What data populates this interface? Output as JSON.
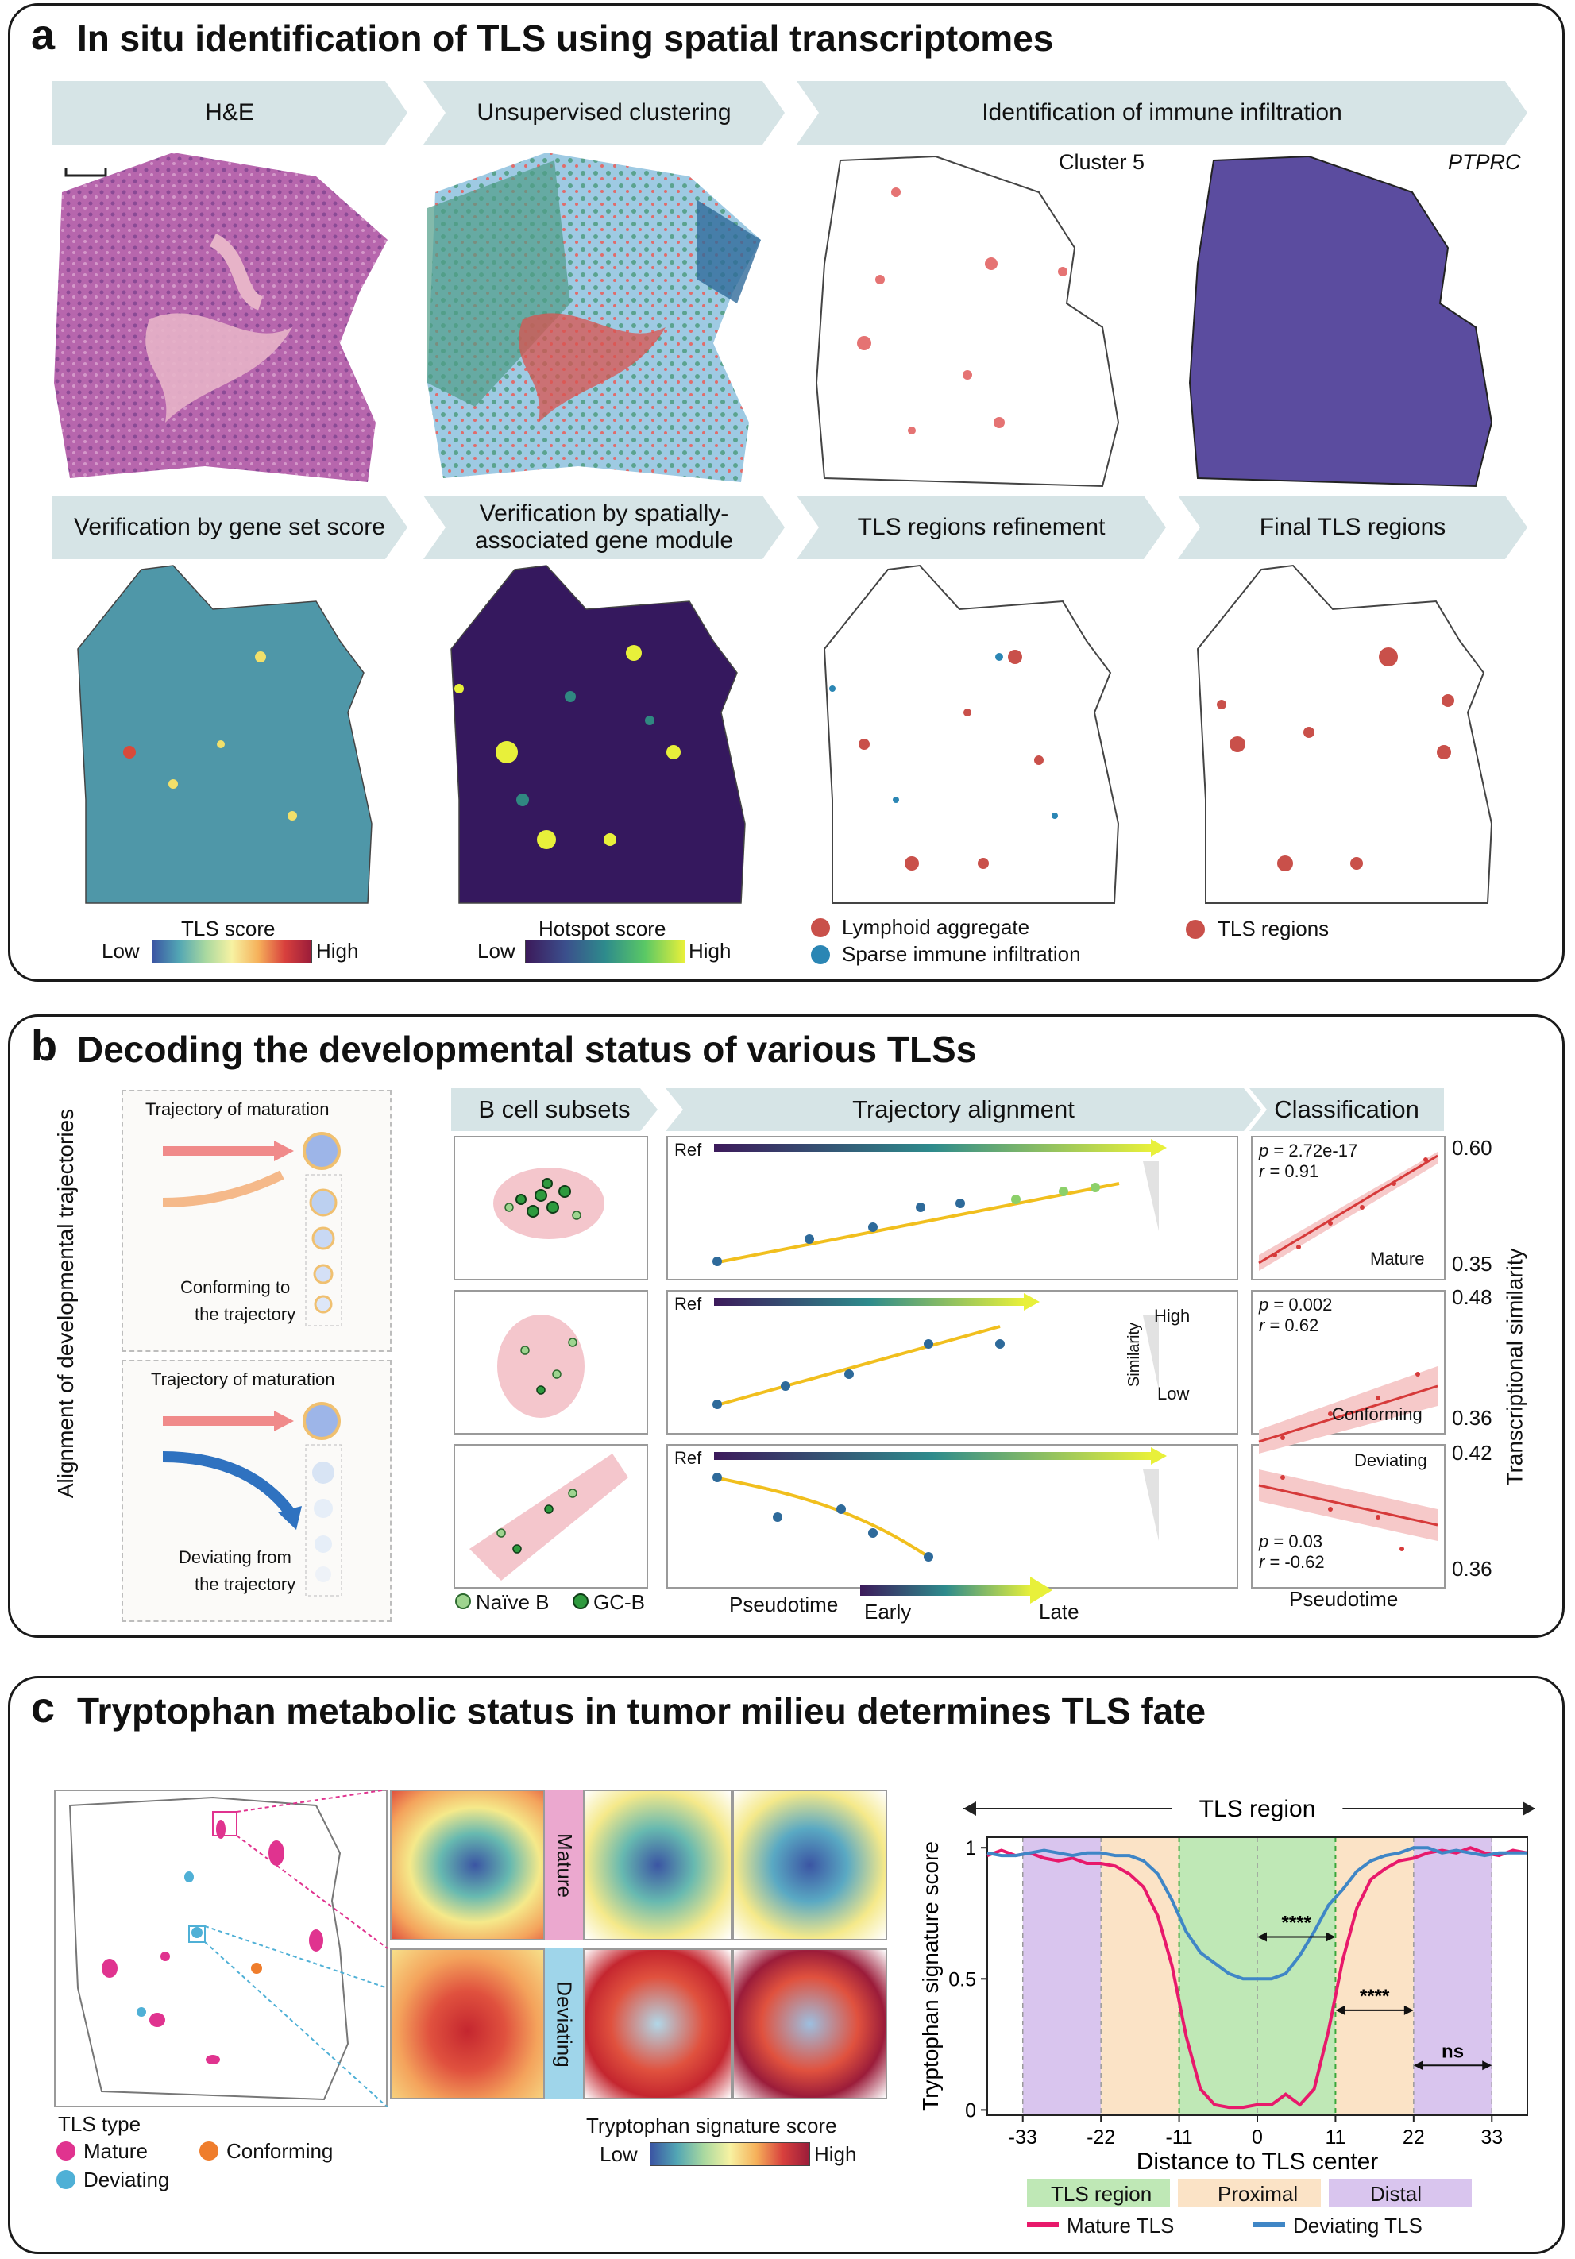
{
  "panel_a": {
    "label": "a",
    "title": "In situ identification of TLS using spatial transcriptomes",
    "headers": [
      "H&E",
      "Unsupervised clustering",
      "Identification of immune infiltration",
      "Verification by gene set score",
      "Verification by spatially-associated gene module",
      "TLS regions refinement",
      "Final TLS regions"
    ],
    "map_labels": {
      "cluster": "Cluster 5",
      "gene": "PTPRC"
    },
    "tls_score": {
      "title": "TLS score",
      "low": "Low",
      "high": "High"
    },
    "hotspot": {
      "title": "Hotspot score",
      "low": "Low",
      "high": "High"
    },
    "legend_refine": [
      "Lymphoid aggregate",
      "Sparse immune infiltration"
    ],
    "legend_final": "TLS regions",
    "colors": {
      "tls": "#c9504a",
      "sparse": "#2b86b4",
      "he": "#b25ea8",
      "ptprc": "#5b4c9f"
    }
  },
  "panel_b": {
    "label": "b",
    "title": "Decoding the developmental status of various TLSs",
    "side_label": "Alignment of developmental trajectories",
    "schematic": {
      "top_title": "Trajectory of maturation",
      "top_caption": [
        "Conforming to",
        "the trajectory"
      ],
      "bottom_title": "Trajectory of maturation",
      "bottom_caption": [
        "Deviating from",
        "the trajectory"
      ]
    },
    "headers": {
      "bcell": "B cell subsets",
      "traj": "Trajectory alignment",
      "class": "Classification"
    },
    "ref": "Ref",
    "similarity": {
      "label": "Similarity",
      "high": "High",
      "low": "Low"
    },
    "legend": [
      "Naïve B",
      "GC-B"
    ],
    "pseudotime": {
      "label": "Pseudotime",
      "early": "Early",
      "late": "Late"
    },
    "class_xlabel": "Pseudotime",
    "class_ylabel": "Transcriptional similarity",
    "rows": [
      {
        "name": "Mature",
        "p": "= 2.72e-17",
        "r": "= 0.91",
        "ymax": "0.60",
        "ymin": "0.35"
      },
      {
        "name": "Conforming",
        "p": "= 0.002",
        "r": "= 0.62",
        "ymax": "0.48",
        "ymin": "0.36"
      },
      {
        "name": "Deviating",
        "p": "= 0.03",
        "r": "= -0.62",
        "ymax": "0.42",
        "ymin": "0.36"
      }
    ],
    "p_symbol": "p",
    "r_symbol": "r"
  },
  "panel_c": {
    "label": "c",
    "title": "Tryptophan metabolic status in tumor milieu determines TLS fate",
    "tls_type_title": "TLS type",
    "tls_types": [
      "Mature",
      "Conforming",
      "Deviating"
    ],
    "type_colors": {
      "Mature": "#e0338f",
      "Conforming": "#ef7d2c",
      "Deviating": "#4fb0d6"
    },
    "row_labels": [
      "Mature",
      "Deviating"
    ],
    "scale": {
      "title": "Tryptophan signature score",
      "low": "Low",
      "high": "High"
    },
    "bracket_label": "TLS region",
    "region_legend": [
      "TLS region",
      "Proximal",
      "Distal"
    ],
    "line_legend": [
      "Mature TLS",
      "Deviating TLS"
    ],
    "significance": [
      "****",
      "****",
      "ns"
    ]
  },
  "chart_data": {
    "type": "line",
    "xlabel": "Distance to TLS center",
    "ylabel": "Tryptophan signature score",
    "xticks": [
      -33,
      -22,
      -11,
      0,
      11,
      22,
      33
    ],
    "yticks": [
      0,
      0.5,
      1
    ],
    "xlim": [
      -38,
      38
    ],
    "ylim": [
      -0.02,
      1.04
    ],
    "x": [
      -38,
      -36,
      -34,
      -32,
      -30,
      -28,
      -26,
      -24,
      -22,
      -20,
      -18,
      -16,
      -14,
      -12,
      -10,
      -8,
      -6,
      -4,
      -2,
      0,
      2,
      4,
      6,
      8,
      10,
      12,
      14,
      16,
      18,
      20,
      22,
      24,
      26,
      28,
      30,
      32,
      34,
      36,
      38
    ],
    "series": [
      {
        "name": "Mature TLS",
        "color": "#e8196b",
        "values": [
          0.97,
          0.99,
          0.97,
          0.98,
          0.96,
          0.95,
          0.96,
          0.94,
          0.94,
          0.93,
          0.9,
          0.85,
          0.74,
          0.55,
          0.28,
          0.08,
          0.02,
          0.01,
          0.01,
          0.02,
          0.02,
          0.06,
          0.02,
          0.08,
          0.3,
          0.57,
          0.77,
          0.88,
          0.92,
          0.95,
          0.96,
          0.98,
          0.99,
          0.98,
          1.0,
          0.98,
          0.97,
          0.99,
          0.98
        ]
      },
      {
        "name": "Deviating TLS",
        "color": "#3f86c6",
        "values": [
          0.98,
          0.97,
          0.97,
          0.98,
          0.99,
          0.98,
          0.97,
          0.98,
          0.98,
          0.97,
          0.97,
          0.95,
          0.9,
          0.8,
          0.68,
          0.6,
          0.56,
          0.52,
          0.5,
          0.5,
          0.5,
          0.52,
          0.59,
          0.68,
          0.78,
          0.84,
          0.91,
          0.95,
          0.97,
          0.98,
          1.0,
          1.0,
          0.98,
          0.99,
          0.98,
          0.97,
          0.98,
          0.98,
          0.98
        ]
      }
    ]
  }
}
